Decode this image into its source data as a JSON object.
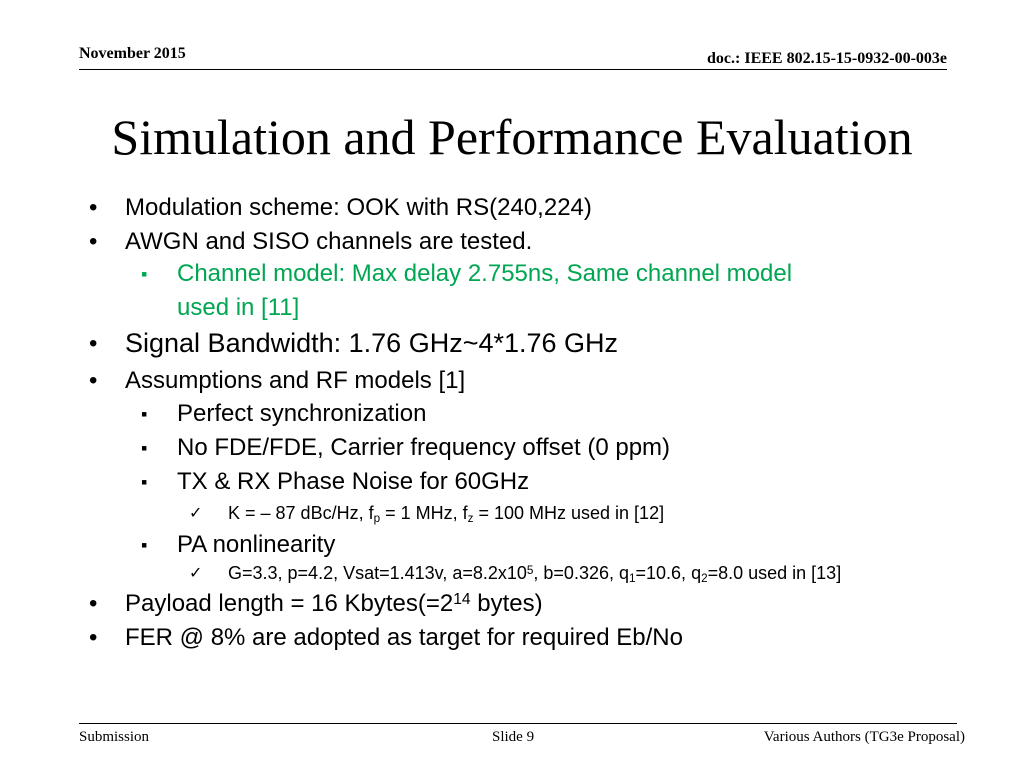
{
  "header": {
    "date": "November 2015",
    "doc_id": "doc.: IEEE 802.15-15-0932-00-003e"
  },
  "title": "Simulation and Performance Evaluation",
  "markers": {
    "level1": "•",
    "level2": "▪",
    "level3": "✓"
  },
  "bullets": {
    "modulation": "Modulation scheme: OOK with RS(240,224)",
    "awgn": "AWGN and SISO channels are tested.",
    "channel_model_line1": "Channel model: Max delay 2.755ns, Same channel model",
    "channel_model_line2": "used in [11]",
    "bandwidth": "Signal Bandwidth: 1.76 GHz~4*1.76 GHz",
    "assumptions": "Assumptions and RF models [1]",
    "sync": "Perfect synchronization",
    "fde": "No FDE/FDE, Carrier frequency offset (0 ppm)",
    "phase_noise": "TX & RX Phase Noise for 60GHz",
    "phase_noise_detail": {
      "part1": "K = – 87 dBc/Hz, f",
      "sub_p": "p",
      "part2": " = 1 MHz, f",
      "sub_z": "z",
      "part3": " = 100 MHz  used in [12]"
    },
    "pa": "PA nonlinearity",
    "pa_detail": {
      "part1": "G=3.3, p=4.2, Vsat=1.413v, a=8.2x10",
      "sup_5": "5",
      "part2": ", b=0.326, q",
      "sub_1": "1",
      "part3": "=10.6, q",
      "sub_2": "2",
      "part4": "=8.0 used in [13]"
    },
    "payload": {
      "part1": "Payload length = 16 Kbytes(=2",
      "sup_14": "14",
      "part2": " bytes)"
    },
    "fer": "FER @ 8% are adopted as target for required Eb/No"
  },
  "footer": {
    "left": "Submission",
    "center": "Slide 9",
    "right": "Various Authors (TG3e Proposal)"
  },
  "colors": {
    "text": "#000000",
    "highlight": "#00a651",
    "background": "#ffffff"
  }
}
